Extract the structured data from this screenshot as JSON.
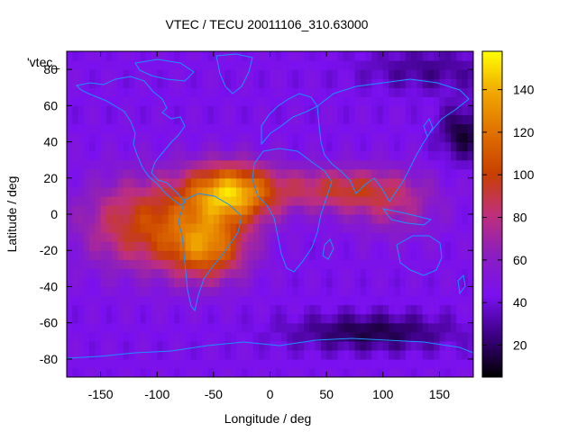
{
  "chart_data": {
    "type": "heatmap",
    "title": "VTEC / TECU 20011106_310.63000",
    "series_label": "'vtec_",
    "xlabel": "Longitude / deg",
    "ylabel": "Latitude / deg",
    "xlim": [
      -180,
      180
    ],
    "ylim": [
      -90,
      90
    ],
    "x_ticks": [
      -150,
      -100,
      -50,
      0,
      50,
      100,
      150
    ],
    "y_ticks": [
      -80,
      -60,
      -40,
      -20,
      0,
      20,
      40,
      60,
      80
    ],
    "colorbar": {
      "range": [
        5,
        158
      ],
      "ticks": [
        20,
        40,
        60,
        80,
        100,
        120,
        140
      ],
      "palette": [
        "#000000",
        "#3a0080",
        "#7a10f0",
        "#8a1ec0",
        "#c0307a",
        "#c84000",
        "#e07000",
        "#f0a800",
        "#ffff00"
      ]
    },
    "features": [
      {
        "name": "equatorial anomaly crest (South America / Atlantic)",
        "lon": -35,
        "lat": 10,
        "value": 140
      },
      {
        "name": "secondary crest (South America)",
        "lon": -55,
        "lat": -20,
        "value": 125
      },
      {
        "name": "eastward tongue (Africa / Arabia / India)",
        "lon": 70,
        "lat": 15,
        "value": 90
      },
      {
        "name": "southern mid-latitude low",
        "lon": 90,
        "lat": -65,
        "value": 12
      },
      {
        "name": "northern high-latitude low",
        "lon": 170,
        "lat": 45,
        "value": 10
      }
    ],
    "coastlines": "continent outlines drawn in light blue"
  },
  "colors": {
    "coastline": "#1e90ff",
    "axis": "#000000"
  }
}
